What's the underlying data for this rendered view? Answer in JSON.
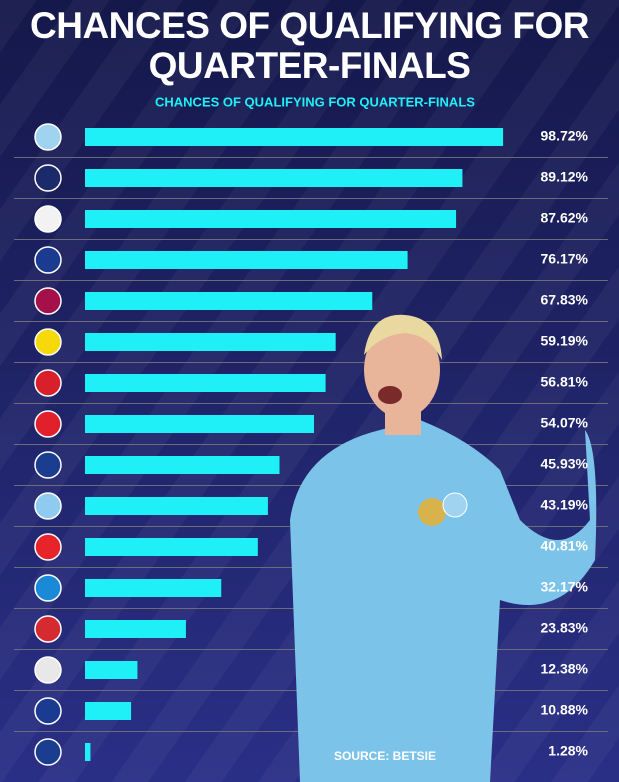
{
  "chart_data": {
    "type": "bar",
    "orientation": "horizontal",
    "title": "CHANCES OF QUALIFYING FOR QUARTER-FINALS",
    "subtitle": "CHANCES OF QUALIFYING FOR QUARTER-FINALS",
    "source": "SOURCE: BETSIE",
    "categories": [
      null,
      null,
      null,
      null,
      null,
      null,
      null,
      null,
      null,
      null,
      null,
      null,
      null,
      null,
      null,
      null
    ],
    "values": [
      98.72,
      89.12,
      87.62,
      76.17,
      67.83,
      59.19,
      56.81,
      54.07,
      45.93,
      43.19,
      40.81,
      32.17,
      23.83,
      12.38,
      10.88,
      1.28
    ],
    "value_labels": [
      "98.72%",
      "89.12%",
      "87.62%",
      "76.17%",
      "67.83%",
      "59.19%",
      "56.81%",
      "54.07%",
      "45.93%",
      "43.19%",
      "40.81%",
      "32.17%",
      "23.83%",
      "12.38%",
      "10.88%",
      "1.28%"
    ],
    "color": "#1ff0f8"
  }
}
